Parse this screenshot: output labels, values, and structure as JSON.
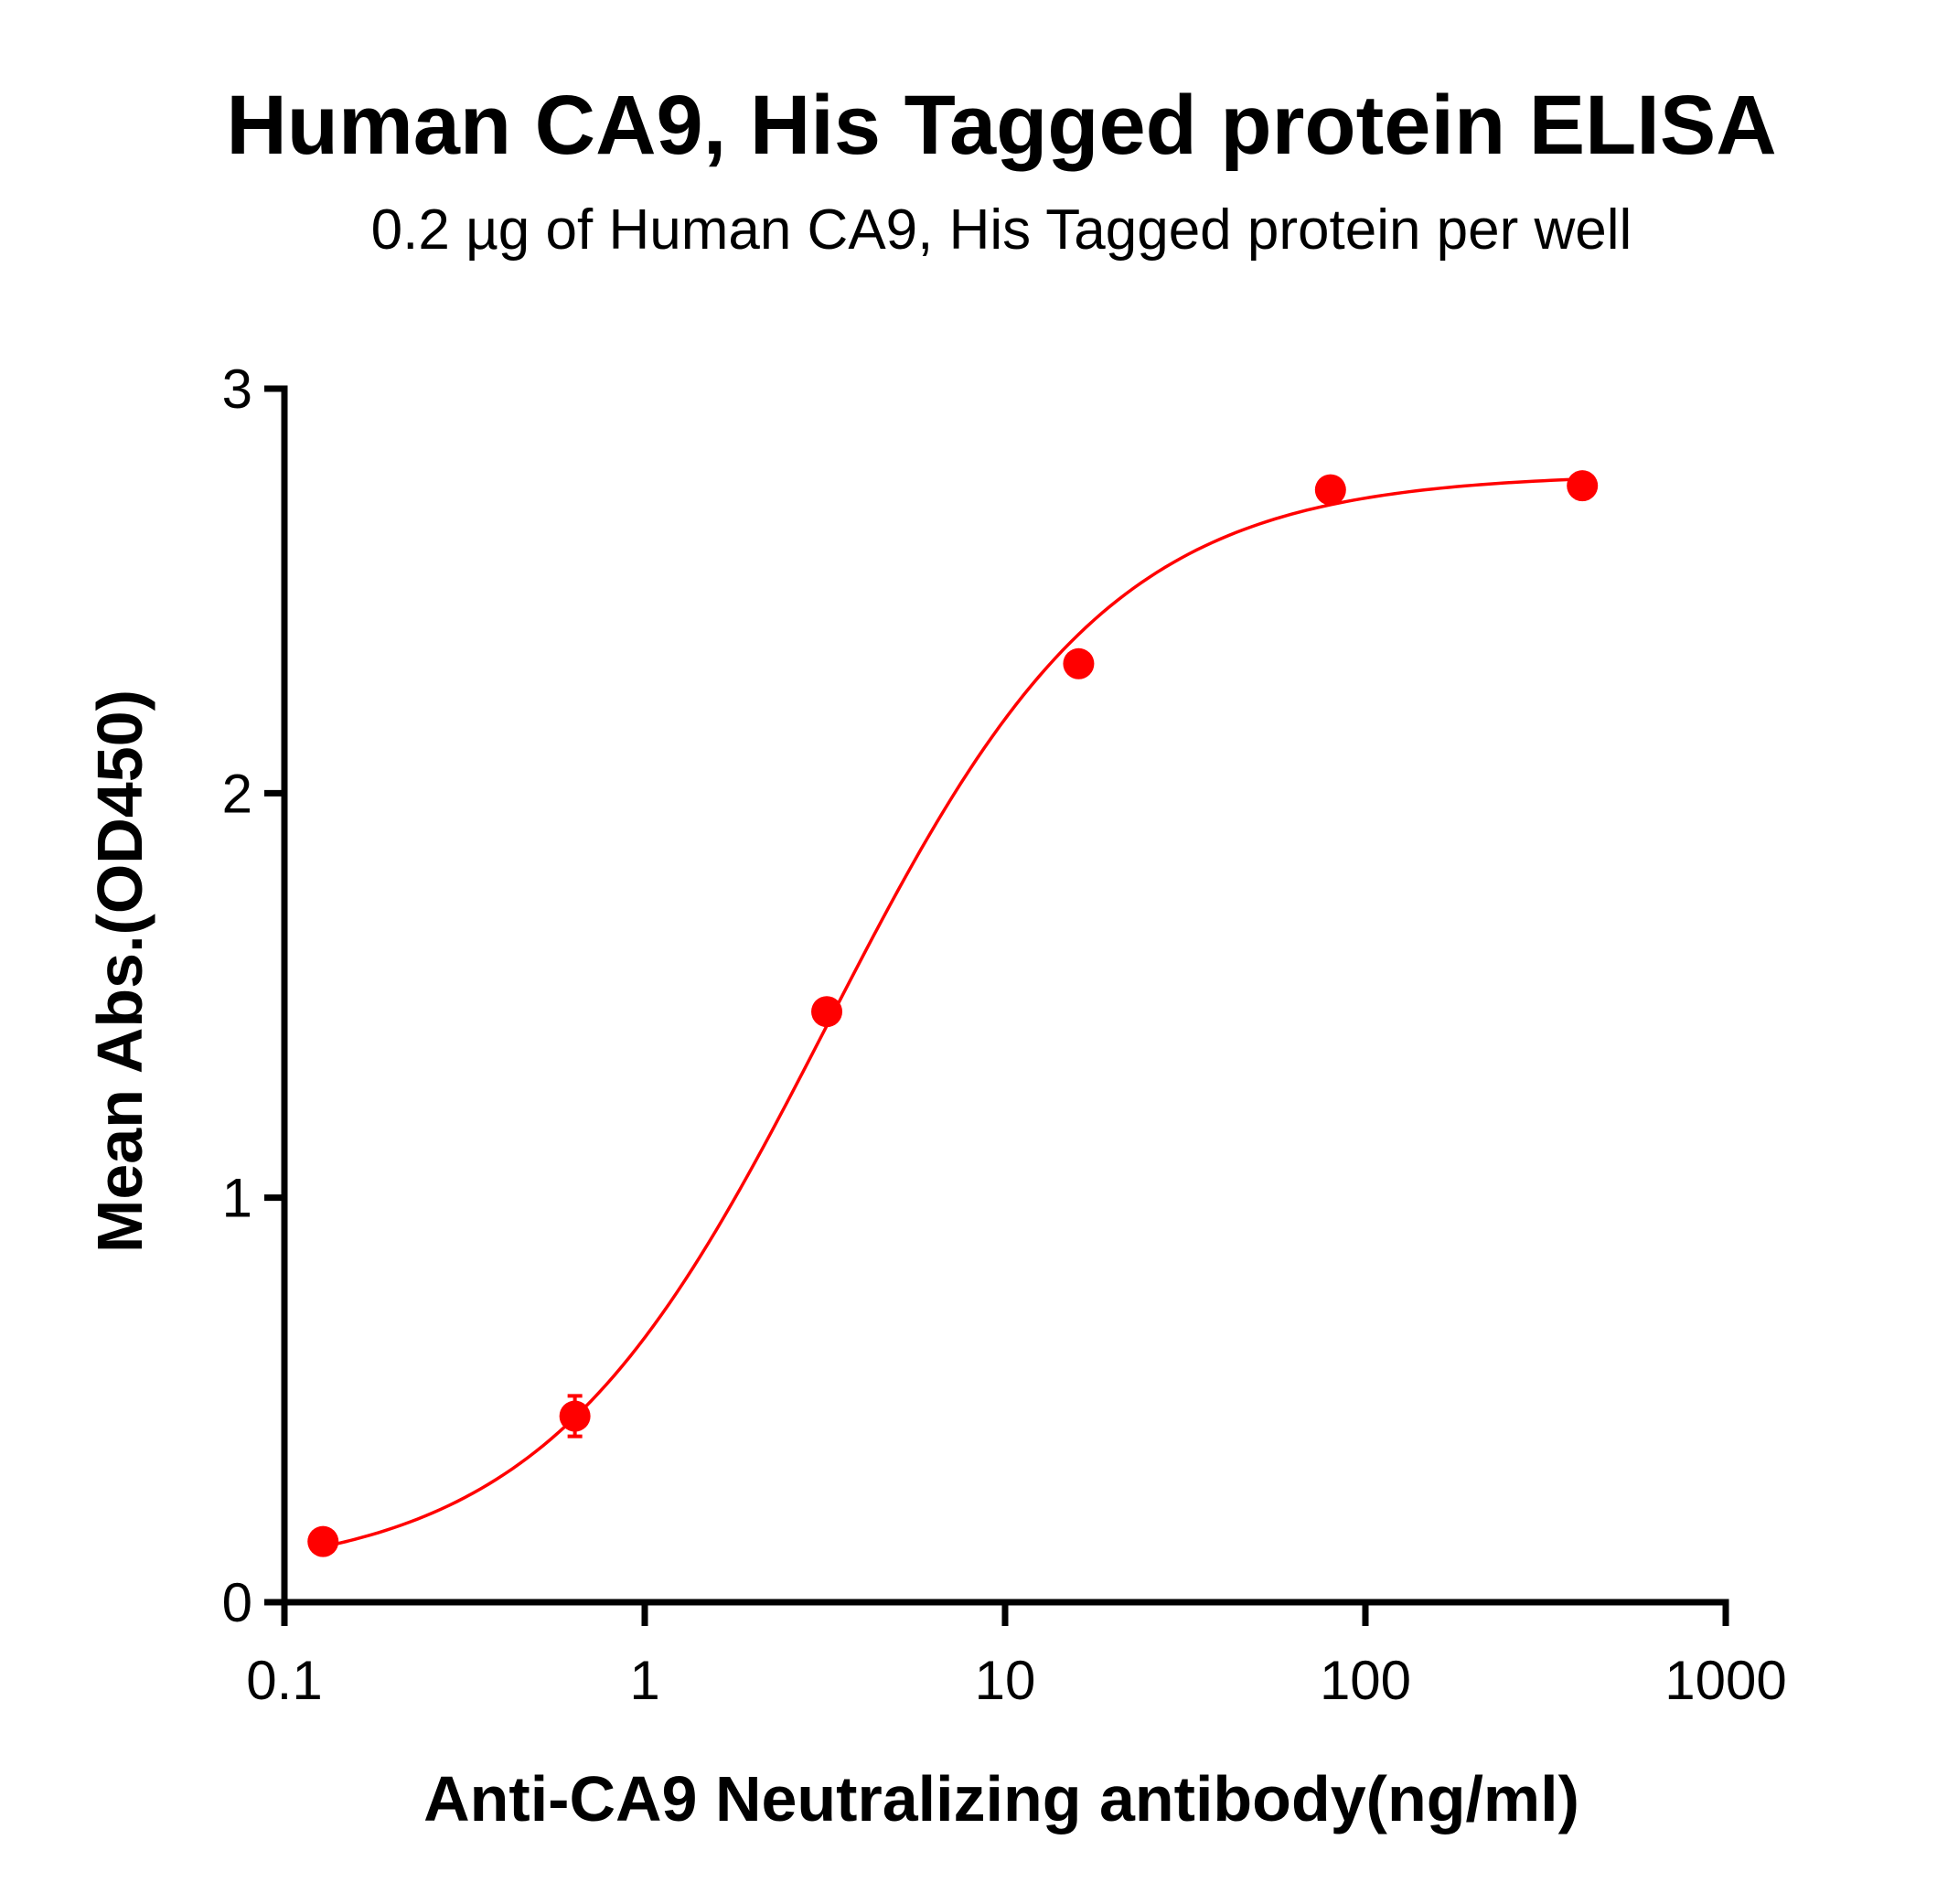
{
  "chart_data": {
    "type": "scatter",
    "title": "Human CA9,  His Tagged protein ELISA",
    "subtitle": "0.2 µg of Human CA9, His Tagged protein per well",
    "xlabel": "Anti-CA9 Neutralizing antibody(ng/ml)",
    "ylabel": "Mean Abs.(OD450)",
    "x_scale": "log",
    "xlim": [
      0.1,
      1000
    ],
    "ylim": [
      0,
      3
    ],
    "x_ticks": [
      0.1,
      1,
      10,
      100,
      1000
    ],
    "x_tick_labels": [
      "0.1",
      "1",
      "10",
      "100",
      "1000"
    ],
    "y_ticks": [
      0,
      1,
      2,
      3
    ],
    "y_tick_labels": [
      "0",
      "1",
      "2",
      "3"
    ],
    "grid": false,
    "legend": "none",
    "series": [
      {
        "color": "#ff0000",
        "x": [
          0.128,
          0.64,
          3.2,
          16,
          80,
          400
        ],
        "y": [
          0.15,
          0.46,
          1.46,
          2.32,
          2.75,
          2.76
        ],
        "error": [
          0.01,
          0.05,
          0.02,
          0.01,
          0.02,
          0.03
        ]
      }
    ],
    "fit": {
      "model": "4PL",
      "color": "#ff0000",
      "bottom": 0.06,
      "top": 2.79,
      "ec50": 3.2,
      "hill": 1.1
    }
  }
}
